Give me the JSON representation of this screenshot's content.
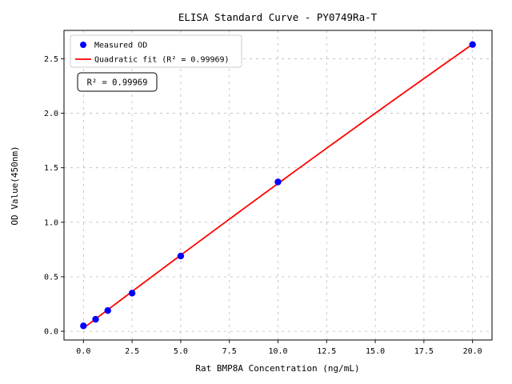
{
  "chart_data": {
    "type": "scatter",
    "title": "ELISA Standard Curve - PY0749Ra-T",
    "xlabel": "Rat BMP8A Concentration (ng/mL)",
    "ylabel": "OD Value(450nm)",
    "xlim": [
      -1,
      21
    ],
    "ylim": [
      -0.08,
      2.76
    ],
    "x_ticks": [
      0.0,
      2.5,
      5.0,
      7.5,
      10.0,
      12.5,
      15.0,
      17.5,
      20.0
    ],
    "x_tick_labels": [
      "0.0",
      "2.5",
      "5.0",
      "7.5",
      "10.0",
      "12.5",
      "15.0",
      "17.5",
      "20.0"
    ],
    "y_ticks": [
      0.0,
      0.5,
      1.0,
      1.5,
      2.0,
      2.5
    ],
    "y_tick_labels": [
      "0.0",
      "0.5",
      "1.0",
      "1.5",
      "2.0",
      "2.5"
    ],
    "grid": true,
    "legend_position": "upper-left",
    "series": [
      {
        "name": "Measured OD",
        "type": "scatter",
        "color": "#0000ff",
        "x": [
          0,
          0.625,
          1.25,
          2.5,
          5,
          10,
          20
        ],
        "y": [
          0.05,
          0.11,
          0.19,
          0.35,
          0.69,
          1.37,
          2.63
        ]
      },
      {
        "name": "Quadratic fit (R² = 0.99969)",
        "type": "line",
        "color": "#ff0000",
        "fit": "quadratic",
        "x_range": [
          0,
          20
        ]
      }
    ],
    "annotation": "R² = 0.99969",
    "r_squared": "0.99969"
  }
}
